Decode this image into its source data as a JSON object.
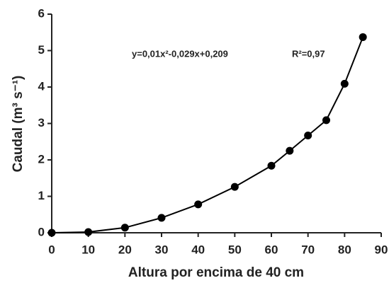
{
  "chart_data": {
    "type": "line",
    "x": [
      0,
      10,
      20,
      30,
      40,
      50,
      60,
      65,
      70,
      75,
      80,
      85
    ],
    "values": [
      0,
      0.02,
      0.14,
      0.41,
      0.78,
      1.26,
      1.84,
      2.25,
      2.67,
      3.09,
      4.09,
      5.37
    ],
    "color": "#000000",
    "xlim": [
      0,
      90
    ],
    "xticks": [
      0,
      10,
      20,
      30,
      40,
      50,
      60,
      70,
      80,
      90
    ],
    "ylim": [
      0,
      6
    ],
    "yticks": [
      0,
      1,
      2,
      3,
      4,
      5,
      6
    ],
    "grid": false,
    "x_label": "Altura por encima de 40 cm",
    "y_label": "Caudal (m³ s⁻¹)",
    "annotations": [
      "y=0,01x²-0,029x+0,209",
      "R²=0,97"
    ]
  }
}
